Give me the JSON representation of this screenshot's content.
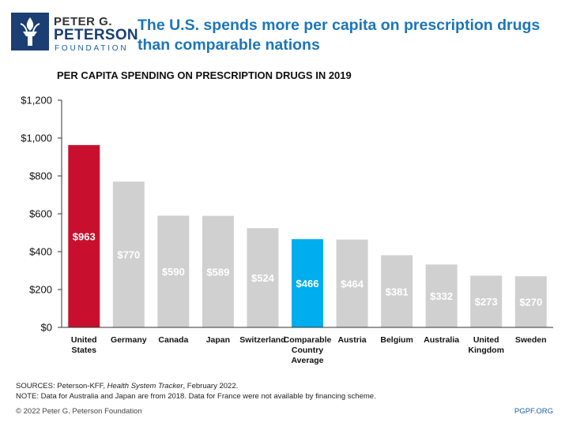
{
  "brand": {
    "line1": "PETER G.",
    "line2": "PETERSON",
    "line3": "FOUNDATION"
  },
  "headline": "The U.S. spends more per capita on prescription drugs than comparable nations",
  "colors": {
    "headline": "#1b76b9",
    "highlight_us": "#c8102e",
    "highlight_average": "#00aeef",
    "default_bar": "#d0d0d0",
    "logo_navy": "#1b3f73"
  },
  "chart_data": {
    "type": "bar",
    "title": "PER CAPITA SPENDING ON PRESCRIPTION DRUGS IN 2019",
    "categories": [
      [
        "United",
        "States"
      ],
      [
        "Germany"
      ],
      [
        "Canada"
      ],
      [
        "Japan"
      ],
      [
        "Switzerland"
      ],
      [
        "Comparable",
        "Country",
        "Average"
      ],
      [
        "Austria"
      ],
      [
        "Belgium"
      ],
      [
        "Australia"
      ],
      [
        "United",
        "Kingdom"
      ],
      [
        "Sweden"
      ]
    ],
    "values": [
      963,
      770,
      590,
      589,
      524,
      466,
      464,
      381,
      332,
      273,
      270
    ],
    "data_labels": [
      "$963",
      "$770",
      "$590",
      "$589",
      "$524",
      "$466",
      "$464",
      "$381",
      "$332",
      "$273",
      "$270"
    ],
    "bar_colors": [
      "#c8102e",
      "#d0d0d0",
      "#d0d0d0",
      "#d0d0d0",
      "#d0d0d0",
      "#00aeef",
      "#d0d0d0",
      "#d0d0d0",
      "#d0d0d0",
      "#d0d0d0",
      "#d0d0d0"
    ],
    "ylim": [
      0,
      1200
    ],
    "yticks": [
      0,
      200,
      400,
      600,
      800,
      1000,
      1200
    ],
    "ytick_labels": [
      "$0",
      "$200",
      "$400",
      "$600",
      "$800",
      "$1,000",
      "$1,200"
    ],
    "xlabel": "",
    "ylabel": "",
    "grid": false
  },
  "notes": {
    "sources_prefix": "SOURCES: Peterson-KFF, ",
    "sources_italic": "Health System Tracker",
    "sources_suffix": ", February 2022.",
    "note": "NOTE: Data for Australia and Japan are from 2018. Data for France were not available by financing scheme."
  },
  "footer": {
    "copyright": "© 2022 Peter G. Peterson Foundation",
    "site": "PGPF.ORG"
  }
}
